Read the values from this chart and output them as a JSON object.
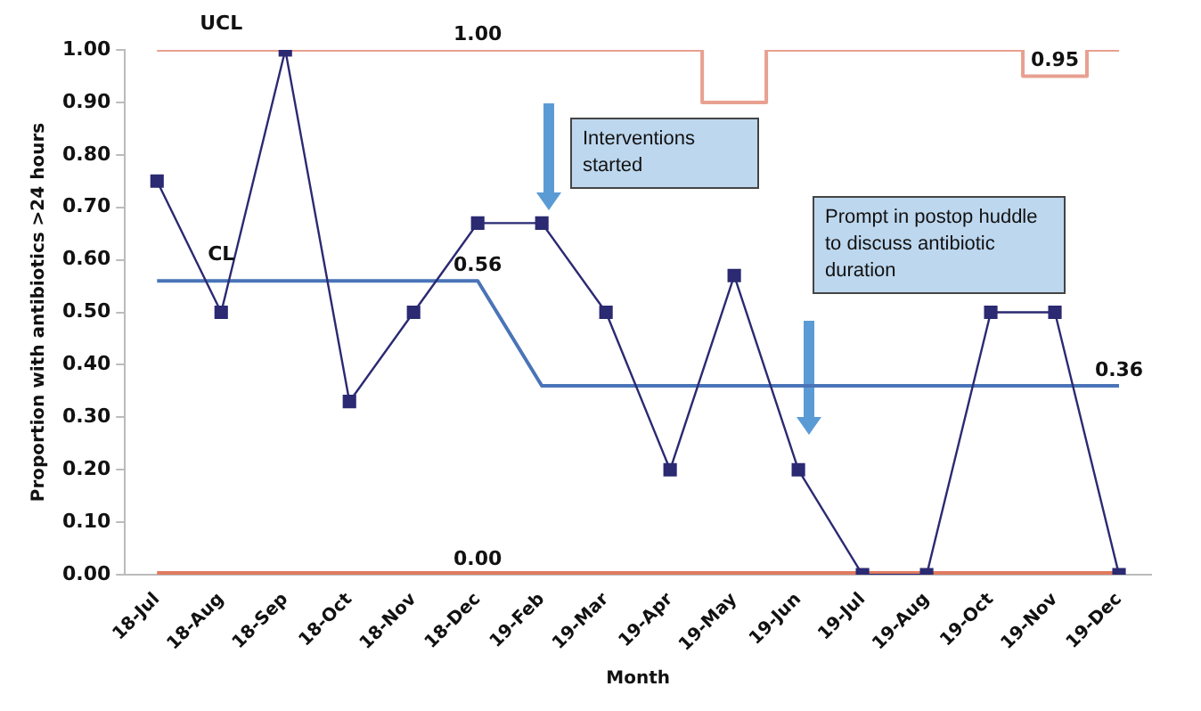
{
  "chart_data": {
    "type": "line",
    "xlabel": "Month",
    "ylabel": "Proportion with antibiotics >24 hours",
    "categories": [
      "18-Jul",
      "18-Aug",
      "18-Sep",
      "18-Oct",
      "18-Nov",
      "18-Dec",
      "19-Feb",
      "19-Mar",
      "19-Apr",
      "19-May",
      "19-Jun",
      "19-Jul",
      "19-Aug",
      "19-Oct",
      "19-Nov",
      "19-Dec"
    ],
    "series": [
      {
        "color": "#2b2a72",
        "marker": "square",
        "values": [
          0.75,
          0.5,
          1.0,
          0.33,
          0.5,
          0.67,
          0.67,
          0.5,
          0.2,
          0.57,
          0.2,
          0,
          0,
          0.5,
          0.5,
          0
        ]
      },
      {
        "name": "UCL",
        "type": "step",
        "color": "#e8a090",
        "marker": "none",
        "values": [
          1,
          1,
          1,
          1,
          1,
          1,
          1,
          1,
          1,
          0.9,
          1,
          1,
          1,
          1,
          0.95,
          1
        ],
        "value_labels": [
          null,
          null,
          null,
          null,
          null,
          "1.00",
          null,
          null,
          null,
          null,
          null,
          null,
          null,
          null,
          "0.95",
          null
        ]
      },
      {
        "name": "CL",
        "color": "#4a74b8",
        "marker": "none",
        "values": [
          0.56,
          0.56,
          0.56,
          0.56,
          0.56,
          0.56,
          0.36,
          0.36,
          0.36,
          0.36,
          0.36,
          0.36,
          0.36,
          0.36,
          0.36,
          0.36
        ],
        "value_labels": [
          null,
          null,
          null,
          null,
          null,
          "0.56",
          null,
          null,
          null,
          null,
          null,
          null,
          null,
          null,
          null,
          "0.36"
        ]
      },
      {
        "color": "#e07a60",
        "marker": "none",
        "values": [
          0,
          0,
          0,
          0,
          0,
          0,
          0,
          0,
          0,
          0,
          0,
          0,
          0,
          0,
          0,
          0
        ],
        "value_labels": [
          null,
          null,
          null,
          null,
          null,
          "0.00",
          null,
          null,
          null,
          null,
          null,
          null,
          null,
          null,
          null,
          null
        ]
      }
    ],
    "ylim": [
      0,
      1
    ],
    "yticks": [
      {
        "value": 0,
        "label": "0.00"
      },
      {
        "value": 0.1,
        "label": "0.10"
      },
      {
        "value": 0.2,
        "label": "0.20"
      },
      {
        "value": 0.3,
        "label": "0.30"
      },
      {
        "value": 0.4,
        "label": "0.40"
      },
      {
        "value": 0.5,
        "label": "0.50"
      },
      {
        "value": 0.6,
        "label": "0.60"
      },
      {
        "value": 0.7,
        "label": "0.70"
      },
      {
        "value": 0.8,
        "label": "0.80"
      },
      {
        "value": 0.9,
        "label": "0.90"
      },
      {
        "value": 1,
        "label": "1.00"
      }
    ],
    "grid": false,
    "legend": false,
    "annotations": [
      "Interventions started",
      "Prompt in postop huddle to discuss antibiotic duration"
    ]
  }
}
